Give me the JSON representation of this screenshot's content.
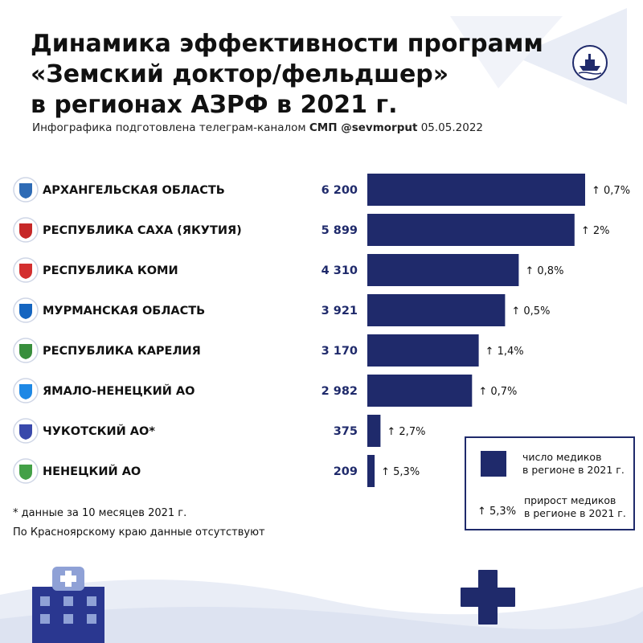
{
  "header": {
    "title_lines": [
      "Динамика эффективности программ",
      "«Земский доктор/фельдшер»",
      "в регионах АЗРФ в 2021 г."
    ],
    "subtitle_prefix": "Инфографика подготовлена телеграм-каналом ",
    "subtitle_channel": "СМП @sevmorput",
    "subtitle_date": " 05.05.2022"
  },
  "chart_data": {
    "type": "bar",
    "orientation": "horizontal",
    "title": "Динамика эффективности программ «Земский доктор/фельдшер» в регионах АЗРФ в 2021 г.",
    "categories": [
      "АРХАНГЕЛЬСКАЯ ОБЛАСТЬ",
      "РЕСПУБЛИКА САХА (ЯКУТИЯ)",
      "РЕСПУБЛИКА КОМИ",
      "МУРМАНСКАЯ ОБЛАСТЬ",
      "РЕСПУБЛИКА КАРЕЛИЯ",
      "ЯМАЛО-НЕНЕЦКИЙ АО",
      "ЧУКОТСКИЙ АО*",
      "НЕНЕЦКИЙ АО"
    ],
    "series": [
      {
        "name": "число медиков в регионе в 2021 г.",
        "values": [
          6200,
          5899,
          4310,
          3921,
          3170,
          2982,
          375,
          209
        ],
        "value_labels": [
          "6 200",
          "5 899",
          "4 310",
          "3 921",
          "3 170",
          "2 982",
          "375",
          "209"
        ]
      },
      {
        "name": "прирост медиков в регионе в 2021 г.",
        "values": [
          0.7,
          2,
          0.8,
          0.5,
          1.4,
          0.7,
          2.7,
          5.3
        ],
        "value_labels": [
          "↑ 0,7%",
          "↑ 2%",
          "↑ 0,8%",
          "↑ 0,5%",
          "↑ 1,4%",
          "↑ 0,7%",
          "↑ 2,7%",
          "↑ 5,3%"
        ]
      }
    ],
    "xlim": [
      0,
      6200
    ],
    "grid": false,
    "legend_position": "bottom-right",
    "bar_color": "#1f2a6b"
  },
  "legend": {
    "count_line1": "число медиков",
    "count_line2": "в регионе в 2021 г.",
    "growth_sample": "↑ 5,3%",
    "growth_line1": "прирост медиков",
    "growth_line2": "в регионе в 2021 г."
  },
  "notes": {
    "footnote": "* данные за 10 месяцев 2021 г.",
    "missing": "По Красноярскому краю данные отсутствуют"
  },
  "icons": {
    "region_emblems": [
      "arkhangelsk-coat-icon",
      "sakha-coat-icon",
      "komi-coat-icon",
      "murmansk-coat-icon",
      "karelia-coat-icon",
      "yamal-coat-icon",
      "chukotka-coat-icon",
      "nenets-coat-icon"
    ],
    "logo": "icebreaker-ship-icon",
    "decor": [
      "hospital-icon",
      "medical-cross-icon"
    ]
  },
  "colors": {
    "accent": "#1f2a6b",
    "decor_light": "#e6ebf5"
  }
}
